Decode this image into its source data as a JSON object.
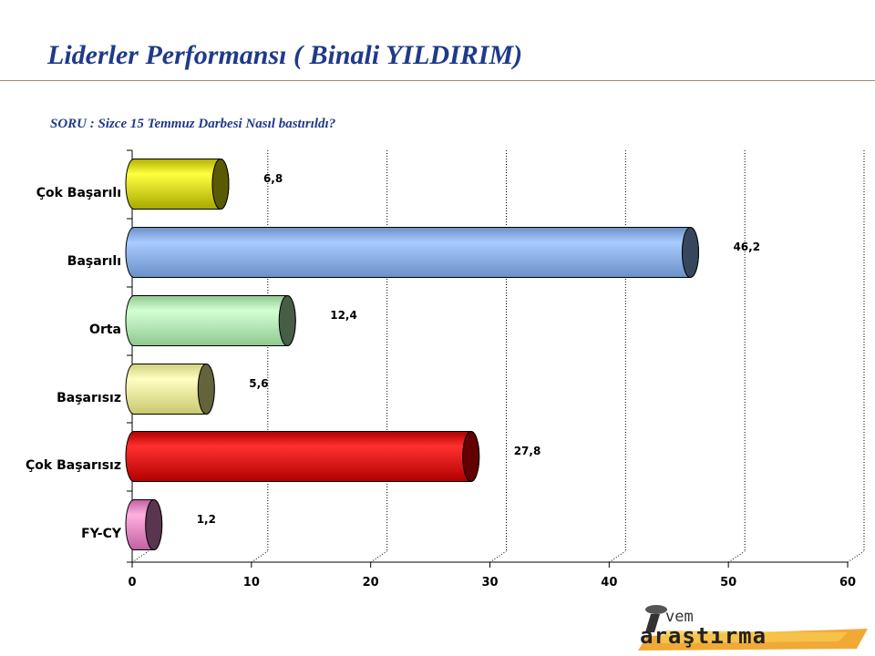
{
  "header": {
    "title": "Liderler Performansı ( Binali YILDIRIM)",
    "question": "SORU : Sizce 15 Temmuz Darbesi Nasıl bastırıldı?"
  },
  "logo": {
    "line1": "vem",
    "line2": "araştırma",
    "icon": "i-letter-logo"
  },
  "chart_data": {
    "type": "bar",
    "orientation": "horizontal",
    "categories": [
      "Çok Başarılı",
      "Başarılı",
      "Orta",
      "Başarısız",
      "Çok Başarısız",
      "FY-CY"
    ],
    "values": [
      6.8,
      46.2,
      12.4,
      5.6,
      27.8,
      1.2
    ],
    "value_labels": [
      "6,8",
      "46,2",
      "12,4",
      "5,6",
      "27,8",
      "1,2"
    ],
    "colors": [
      "#e6e600",
      "#8cb8f0",
      "#b4f0b4",
      "#ffff99",
      "#ff0000",
      "#e888c8"
    ],
    "xlim": [
      0,
      60
    ],
    "xticks": [
      0,
      10,
      20,
      30,
      40,
      50,
      60
    ],
    "grid": true,
    "legend": "none",
    "style": "3d-cylinder"
  }
}
